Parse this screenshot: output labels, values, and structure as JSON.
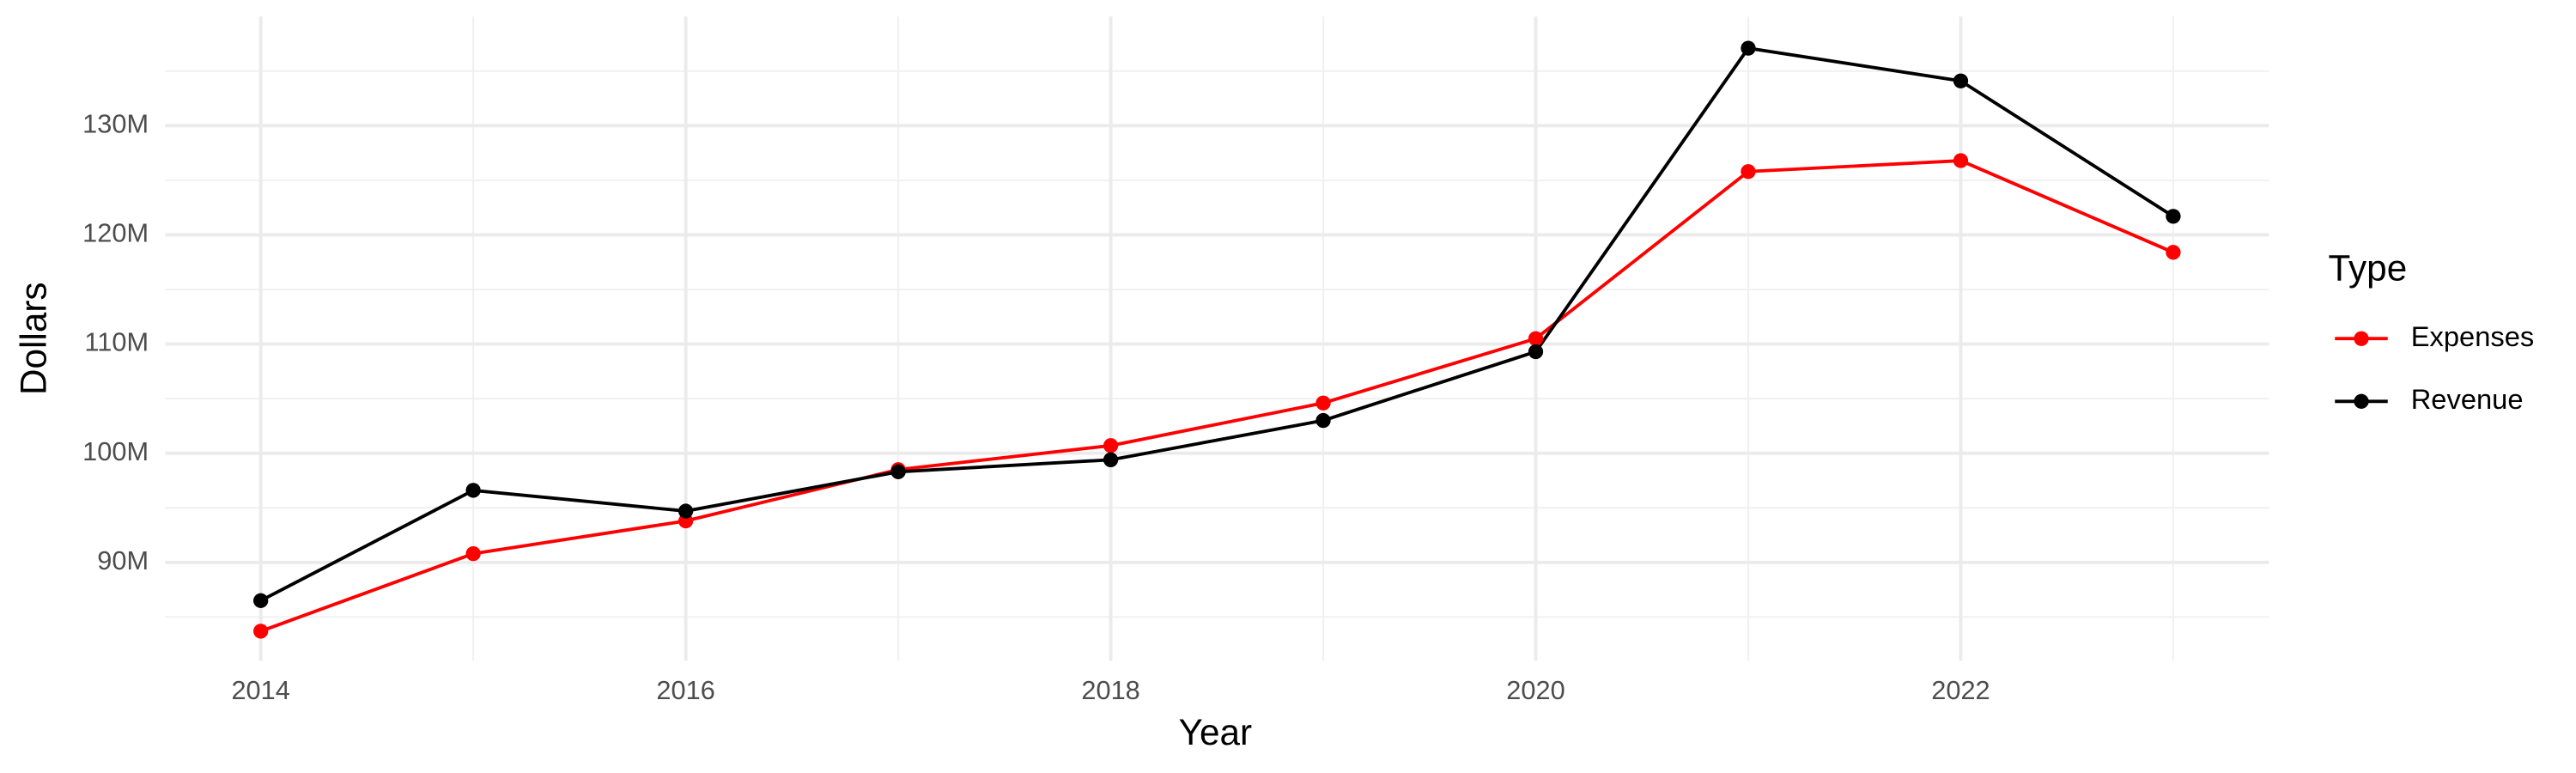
{
  "chart_data": {
    "type": "line",
    "x_label": "Year",
    "y_label": "Dollars",
    "legend_title": "Type",
    "x": [
      2014,
      2015,
      2016,
      2017,
      2018,
      2019,
      2020,
      2021,
      2022,
      2023
    ],
    "series": [
      {
        "name": "Expenses",
        "color": "#ff0000",
        "values": [
          83700000,
          90800000,
          93800000,
          98500000,
          100700000,
          104600000,
          110500000,
          125800000,
          126800000,
          118400000
        ]
      },
      {
        "name": "Revenue",
        "color": "#000000",
        "values": [
          86500000,
          96600000,
          94700000,
          98300000,
          99400000,
          103000000,
          109300000,
          137100000,
          134100000,
          121700000
        ]
      }
    ],
    "xlim": [
      2013.55,
      2023.45
    ],
    "ylim": [
      81000000,
      140000000
    ],
    "xticks": [
      2014,
      2016,
      2018,
      2020,
      2022
    ],
    "yticks": [
      {
        "value": 90000000,
        "label": "90M"
      },
      {
        "value": 100000000,
        "label": "100M"
      },
      {
        "value": 110000000,
        "label": "110M"
      },
      {
        "value": 120000000,
        "label": "120M"
      },
      {
        "value": 130000000,
        "label": "130M"
      }
    ],
    "grid": true,
    "legend_position": "right"
  }
}
